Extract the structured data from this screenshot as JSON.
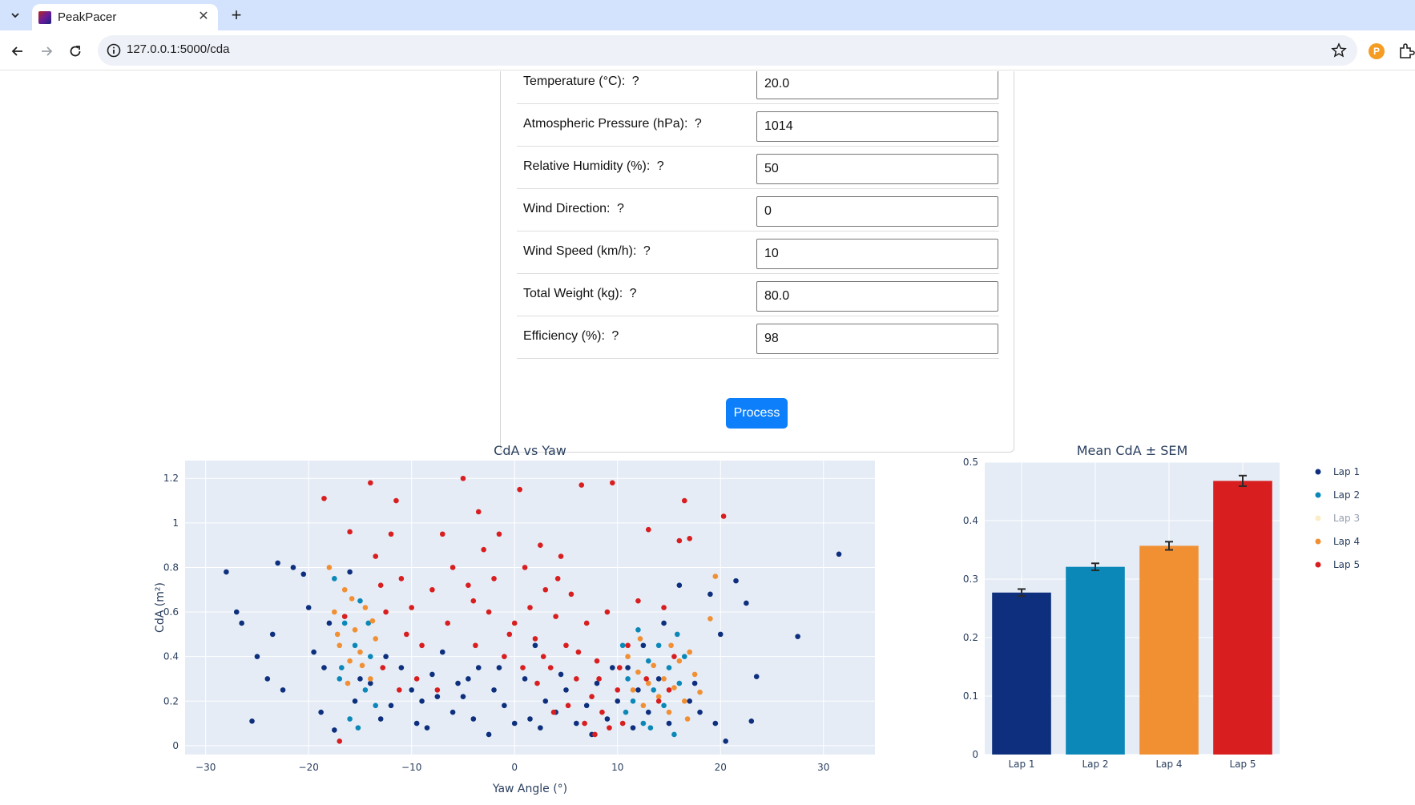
{
  "browser": {
    "tab_title": "PeakPacer",
    "url": "127.0.0.1:5000/cda",
    "extension_badge": "P"
  },
  "form": {
    "fields": [
      {
        "label": "Temperature (°C):",
        "help": "?",
        "value": "20.0"
      },
      {
        "label": "Atmospheric Pressure (hPa):",
        "help": "?",
        "value": "1014"
      },
      {
        "label": "Relative Humidity (%):",
        "help": "?",
        "value": "50"
      },
      {
        "label": "Wind Direction:",
        "help": "?",
        "value": "0"
      },
      {
        "label": "Wind Speed (km/h):",
        "help": "?",
        "value": "10"
      },
      {
        "label": "Total Weight (kg):",
        "help": "?",
        "value": "80.0"
      },
      {
        "label": "Efficiency (%):",
        "help": "?",
        "value": "98"
      }
    ],
    "submit_label": "Process"
  },
  "colors": {
    "lap1": "#0d2f7d",
    "lap2": "#0b88b8",
    "lap3": "#f7dd8f",
    "lap4": "#f18f33",
    "lap5": "#d81e1f",
    "plot_bg": "#e5ecf6",
    "button": "#0d7ffb"
  },
  "chart_data": [
    {
      "type": "scatter",
      "title": "CdA vs Yaw",
      "xlabel": "Yaw Angle (°)",
      "ylabel": "CdA (m²)",
      "xlim": [
        -32,
        35
      ],
      "ylim": [
        -0.04,
        1.28
      ],
      "xticks": [
        -30,
        -20,
        -10,
        0,
        10,
        20,
        30
      ],
      "xtick_labels": [
        "−30",
        "−20",
        "−10",
        "0",
        "10",
        "20",
        "30"
      ],
      "yticks": [
        0,
        0.2,
        0.4,
        0.6,
        0.8,
        1,
        1.2
      ],
      "ytick_labels": [
        "0",
        "0.2",
        "0.4",
        "0.6",
        "0.8",
        "1",
        "1.2"
      ],
      "grid": true,
      "series": [
        {
          "name": "Lap 1",
          "color_key": "lap1",
          "points": [
            [
              -28,
              0.78
            ],
            [
              -26.5,
              0.55
            ],
            [
              -25.5,
              0.11
            ],
            [
              -24,
              0.3
            ],
            [
              -23,
              0.82
            ],
            [
              -22.5,
              0.25
            ],
            [
              -21.5,
              0.8
            ],
            [
              -20.5,
              0.77
            ],
            [
              -20,
              0.62
            ],
            [
              -19.5,
              0.42
            ],
            [
              -18.8,
              0.15
            ],
            [
              -18,
              0.55
            ],
            [
              -17.5,
              0.07
            ],
            [
              -16,
              0.78
            ],
            [
              -15,
              0.3
            ],
            [
              -14,
              0.28
            ],
            [
              -13,
              0.12
            ],
            [
              -12,
              0.18
            ],
            [
              -11,
              0.35
            ],
            [
              -10,
              0.25
            ],
            [
              -9,
              0.2
            ],
            [
              -8.5,
              0.08
            ],
            [
              -8,
              0.32
            ],
            [
              -7,
              0.42
            ],
            [
              -6,
              0.15
            ],
            [
              -5.5,
              0.28
            ],
            [
              -5,
              0.22
            ],
            [
              -4,
              0.12
            ],
            [
              -3.5,
              0.35
            ],
            [
              -2.5,
              0.05
            ],
            [
              -2,
              0.25
            ],
            [
              -1,
              0.18
            ],
            [
              0,
              0.1
            ],
            [
              1,
              0.3
            ],
            [
              2,
              0.45
            ],
            [
              2.5,
              0.08
            ],
            [
              3,
              0.2
            ],
            [
              4,
              0.15
            ],
            [
              5,
              0.25
            ],
            [
              6,
              0.1
            ],
            [
              7,
              0.18
            ],
            [
              8,
              0.28
            ],
            [
              9,
              0.12
            ],
            [
              10,
              0.2
            ],
            [
              11,
              0.35
            ],
            [
              11.5,
              0.08
            ],
            [
              12,
              0.25
            ],
            [
              13,
              0.15
            ],
            [
              14,
              0.3
            ],
            [
              15,
              0.1
            ],
            [
              16,
              0.72
            ],
            [
              17,
              0.2
            ],
            [
              18,
              0.15
            ],
            [
              19,
              0.68
            ],
            [
              20,
              0.5
            ],
            [
              20.5,
              0.02
            ],
            [
              21.5,
              0.74
            ],
            [
              22.5,
              0.64
            ],
            [
              23,
              0.11
            ],
            [
              23.5,
              0.31
            ],
            [
              27.5,
              0.49
            ],
            [
              31.5,
              0.86
            ],
            [
              -27,
              0.6
            ],
            [
              -25,
              0.4
            ],
            [
              -23.5,
              0.5
            ],
            [
              -18.5,
              0.35
            ],
            [
              -15.5,
              0.2
            ],
            [
              -12.5,
              0.4
            ],
            [
              -9.5,
              0.1
            ],
            [
              -7.5,
              0.22
            ],
            [
              -4.5,
              0.3
            ],
            [
              -1.5,
              0.35
            ],
            [
              1.5,
              0.12
            ],
            [
              4.5,
              0.32
            ],
            [
              7.5,
              0.05
            ],
            [
              9.5,
              0.35
            ],
            [
              12.5,
              0.45
            ],
            [
              14.5,
              0.55
            ],
            [
              17.5,
              0.28
            ],
            [
              19.5,
              0.1
            ]
          ]
        },
        {
          "name": "Lap 2",
          "color_key": "lap2",
          "points": [
            [
              -17.5,
              0.75
            ],
            [
              -17,
              0.3
            ],
            [
              -16.5,
              0.55
            ],
            [
              -16,
              0.12
            ],
            [
              -15.5,
              0.45
            ],
            [
              -15,
              0.65
            ],
            [
              -14.5,
              0.25
            ],
            [
              -14,
              0.4
            ],
            [
              -13.5,
              0.18
            ],
            [
              -16.8,
              0.35
            ],
            [
              -15.2,
              0.08
            ],
            [
              -14.2,
              0.55
            ],
            [
              10.5,
              0.45
            ],
            [
              11,
              0.3
            ],
            [
              11.5,
              0.2
            ],
            [
              12,
              0.52
            ],
            [
              12.5,
              0.1
            ],
            [
              13,
              0.38
            ],
            [
              13.5,
              0.25
            ],
            [
              14,
              0.45
            ],
            [
              14.5,
              0.18
            ],
            [
              15,
              0.35
            ],
            [
              15.5,
              0.05
            ],
            [
              16,
              0.28
            ],
            [
              16.5,
              0.4
            ],
            [
              10.8,
              0.15
            ],
            [
              13.2,
              0.08
            ],
            [
              15.8,
              0.5
            ]
          ]
        },
        {
          "name": "Lap 3",
          "color_key": "lap3",
          "points": []
        },
        {
          "name": "Lap 4",
          "color_key": "lap4",
          "points": [
            [
              -18,
              0.8
            ],
            [
              -17.5,
              0.6
            ],
            [
              -17,
              0.45
            ],
            [
              -16.5,
              0.7
            ],
            [
              -16,
              0.38
            ],
            [
              -15.5,
              0.52
            ],
            [
              -15,
              0.42
            ],
            [
              -14.5,
              0.62
            ],
            [
              -14,
              0.3
            ],
            [
              -13.5,
              0.48
            ],
            [
              -16.2,
              0.28
            ],
            [
              -15.8,
              0.66
            ],
            [
              -14.8,
              0.36
            ],
            [
              -17.2,
              0.5
            ],
            [
              -13.8,
              0.56
            ],
            [
              11,
              0.4
            ],
            [
              11.5,
              0.25
            ],
            [
              12,
              0.33
            ],
            [
              12.5,
              0.18
            ],
            [
              13,
              0.28
            ],
            [
              13.5,
              0.36
            ],
            [
              14,
              0.22
            ],
            [
              14.5,
              0.3
            ],
            [
              15,
              0.15
            ],
            [
              15.5,
              0.26
            ],
            [
              16,
              0.38
            ],
            [
              16.5,
              0.2
            ],
            [
              17,
              0.42
            ],
            [
              17.5,
              0.32
            ],
            [
              18,
              0.24
            ],
            [
              19,
              0.57
            ],
            [
              19.5,
              0.76
            ],
            [
              12.2,
              0.48
            ],
            [
              15.2,
              0.45
            ],
            [
              16.8,
              0.12
            ]
          ]
        },
        {
          "name": "Lap 5",
          "color_key": "lap5",
          "points": [
            [
              -18.5,
              1.11
            ],
            [
              -16.5,
              0.58
            ],
            [
              -16,
              0.96
            ],
            [
              -14,
              1.18
            ],
            [
              -13.5,
              0.85
            ],
            [
              -13,
              0.72
            ],
            [
              -12.5,
              0.6
            ],
            [
              -12,
              0.95
            ],
            [
              -11.5,
              1.1
            ],
            [
              -11,
              0.75
            ],
            [
              -10.5,
              0.5
            ],
            [
              -10,
              0.62
            ],
            [
              -9,
              0.45
            ],
            [
              -8,
              0.7
            ],
            [
              -7,
              0.95
            ],
            [
              -6.5,
              0.55
            ],
            [
              -6,
              0.8
            ],
            [
              -5,
              1.2
            ],
            [
              -4.5,
              0.72
            ],
            [
              -4,
              0.65
            ],
            [
              -3.5,
              1.05
            ],
            [
              -3,
              0.88
            ],
            [
              -2.5,
              0.6
            ],
            [
              -2,
              0.75
            ],
            [
              -1.5,
              0.95
            ],
            [
              -1,
              0.4
            ],
            [
              0,
              0.55
            ],
            [
              0.5,
              1.15
            ],
            [
              1,
              0.8
            ],
            [
              1.5,
              0.62
            ],
            [
              2,
              0.48
            ],
            [
              2.5,
              0.9
            ],
            [
              3,
              0.7
            ],
            [
              3.5,
              0.35
            ],
            [
              4,
              0.58
            ],
            [
              4.5,
              0.85
            ],
            [
              5,
              0.45
            ],
            [
              5.5,
              0.68
            ],
            [
              6,
              0.3
            ],
            [
              6.5,
              1.17
            ],
            [
              7,
              0.55
            ],
            [
              7.5,
              0.22
            ],
            [
              8,
              0.38
            ],
            [
              8.5,
              0.15
            ],
            [
              9,
              0.6
            ],
            [
              9.5,
              1.18
            ],
            [
              10,
              0.25
            ],
            [
              10.5,
              0.1
            ],
            [
              11,
              0.45
            ],
            [
              12,
              0.65
            ],
            [
              13,
              0.97
            ],
            [
              14,
              0.2
            ],
            [
              14.5,
              0.62
            ],
            [
              15,
              0.25
            ],
            [
              16,
              0.92
            ],
            [
              16.5,
              1.1
            ],
            [
              17,
              0.93
            ],
            [
              20.3,
              1.03
            ],
            [
              -9.5,
              0.3
            ],
            [
              -7.5,
              0.25
            ],
            [
              2.2,
              0.28
            ],
            [
              3.8,
              0.15
            ],
            [
              6.8,
              0.1
            ],
            [
              8.2,
              0.3
            ],
            [
              9.2,
              0.08
            ],
            [
              -12.8,
              0.35
            ],
            [
              -11.2,
              0.25
            ],
            [
              0.8,
              0.35
            ],
            [
              5.2,
              0.18
            ],
            [
              7.8,
              0.05
            ],
            [
              -17,
              0.02
            ],
            [
              -3.8,
              0.45
            ],
            [
              -0.5,
              0.5
            ],
            [
              2.8,
              0.4
            ],
            [
              4.2,
              0.75
            ],
            [
              6.2,
              0.42
            ],
            [
              10.2,
              0.35
            ],
            [
              12.8,
              0.3
            ],
            [
              15.5,
              0.4
            ]
          ]
        }
      ]
    },
    {
      "type": "bar",
      "title": "Mean CdA ± SEM",
      "categories": [
        "Lap 1",
        "Lap 2",
        "Lap 4",
        "Lap 5"
      ],
      "values": [
        0.277,
        0.321,
        0.357,
        0.468
      ],
      "errors": [
        0.006,
        0.006,
        0.007,
        0.009
      ],
      "bar_color_keys": [
        "lap1",
        "lap2",
        "lap4",
        "lap5"
      ],
      "ylim": [
        0,
        0.5
      ],
      "yticks": [
        0,
        0.1,
        0.2,
        0.3,
        0.4,
        0.5
      ],
      "ytick_labels": [
        "0",
        "0.1",
        "0.2",
        "0.3",
        "0.4",
        "0.5"
      ],
      "grid": true
    }
  ],
  "legend": {
    "placement": "right",
    "items": [
      {
        "label": "Lap 1",
        "color_key": "lap1",
        "active": true
      },
      {
        "label": "Lap 2",
        "color_key": "lap2",
        "active": true
      },
      {
        "label": "Lap 3",
        "color_key": "lap3",
        "active": false
      },
      {
        "label": "Lap 4",
        "color_key": "lap4",
        "active": true
      },
      {
        "label": "Lap 5",
        "color_key": "lap5",
        "active": true
      }
    ]
  }
}
